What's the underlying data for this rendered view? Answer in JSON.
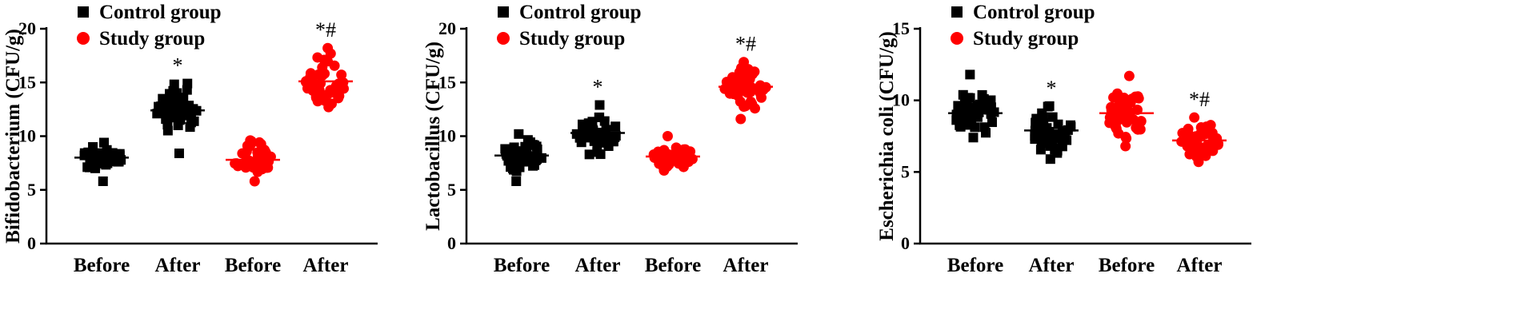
{
  "legend": [
    {
      "name": "Control group",
      "color": "#000000",
      "marker": "square"
    },
    {
      "name": "Study group",
      "color": "#ff0000",
      "marker": "circle"
    }
  ],
  "chart_data": [
    {
      "type": "scatter",
      "ylabel": "Bifidobacterium (CFU/g)",
      "ylim": [
        0,
        20
      ],
      "yticks": [
        0,
        5,
        10,
        15,
        20
      ],
      "categories": [
        "Before",
        "After",
        "Before",
        "After"
      ],
      "groups": [
        {
          "series": "Control group",
          "category": "Before",
          "mean": 8.0,
          "min": 5.8,
          "max": 9.4,
          "annotation": ""
        },
        {
          "series": "Control group",
          "category": "After",
          "mean": 12.4,
          "min": 8.4,
          "max": 14.9,
          "annotation": "*"
        },
        {
          "series": "Study group",
          "category": "Before",
          "mean": 7.8,
          "min": 5.8,
          "max": 9.6,
          "annotation": ""
        },
        {
          "series": "Study group",
          "category": "After",
          "mean": 15.1,
          "min": 12.7,
          "max": 18.2,
          "annotation": "*#"
        }
      ]
    },
    {
      "type": "scatter",
      "ylabel": "Lactobacillus (CFU/g)",
      "ylim": [
        0,
        20
      ],
      "yticks": [
        0,
        5,
        10,
        15,
        20
      ],
      "categories": [
        "Before",
        "After",
        "Before",
        "After"
      ],
      "groups": [
        {
          "series": "Control group",
          "category": "Before",
          "mean": 8.2,
          "min": 5.8,
          "max": 10.2,
          "annotation": ""
        },
        {
          "series": "Control group",
          "category": "After",
          "mean": 10.3,
          "min": 8.3,
          "max": 12.9,
          "annotation": "*"
        },
        {
          "series": "Study group",
          "category": "Before",
          "mean": 8.1,
          "min": 6.8,
          "max": 10.0,
          "annotation": ""
        },
        {
          "series": "Study group",
          "category": "After",
          "mean": 14.6,
          "min": 11.6,
          "max": 16.9,
          "annotation": "*#"
        }
      ]
    },
    {
      "type": "scatter",
      "ylabel": "Escherichia coli (CFU/g)",
      "ylim": [
        0,
        15
      ],
      "yticks": [
        0,
        5,
        10,
        15
      ],
      "categories": [
        "Before",
        "After",
        "Before",
        "After"
      ],
      "groups": [
        {
          "series": "Control group",
          "category": "Before",
          "mean": 9.1,
          "min": 7.4,
          "max": 11.8,
          "annotation": ""
        },
        {
          "series": "Control group",
          "category": "After",
          "mean": 7.9,
          "min": 5.9,
          "max": 9.6,
          "annotation": "*"
        },
        {
          "series": "Study group",
          "category": "Before",
          "mean": 9.1,
          "min": 6.8,
          "max": 11.7,
          "annotation": ""
        },
        {
          "series": "Study group",
          "category": "After",
          "mean": 7.2,
          "min": 5.7,
          "max": 8.8,
          "annotation": "*#"
        }
      ]
    }
  ]
}
